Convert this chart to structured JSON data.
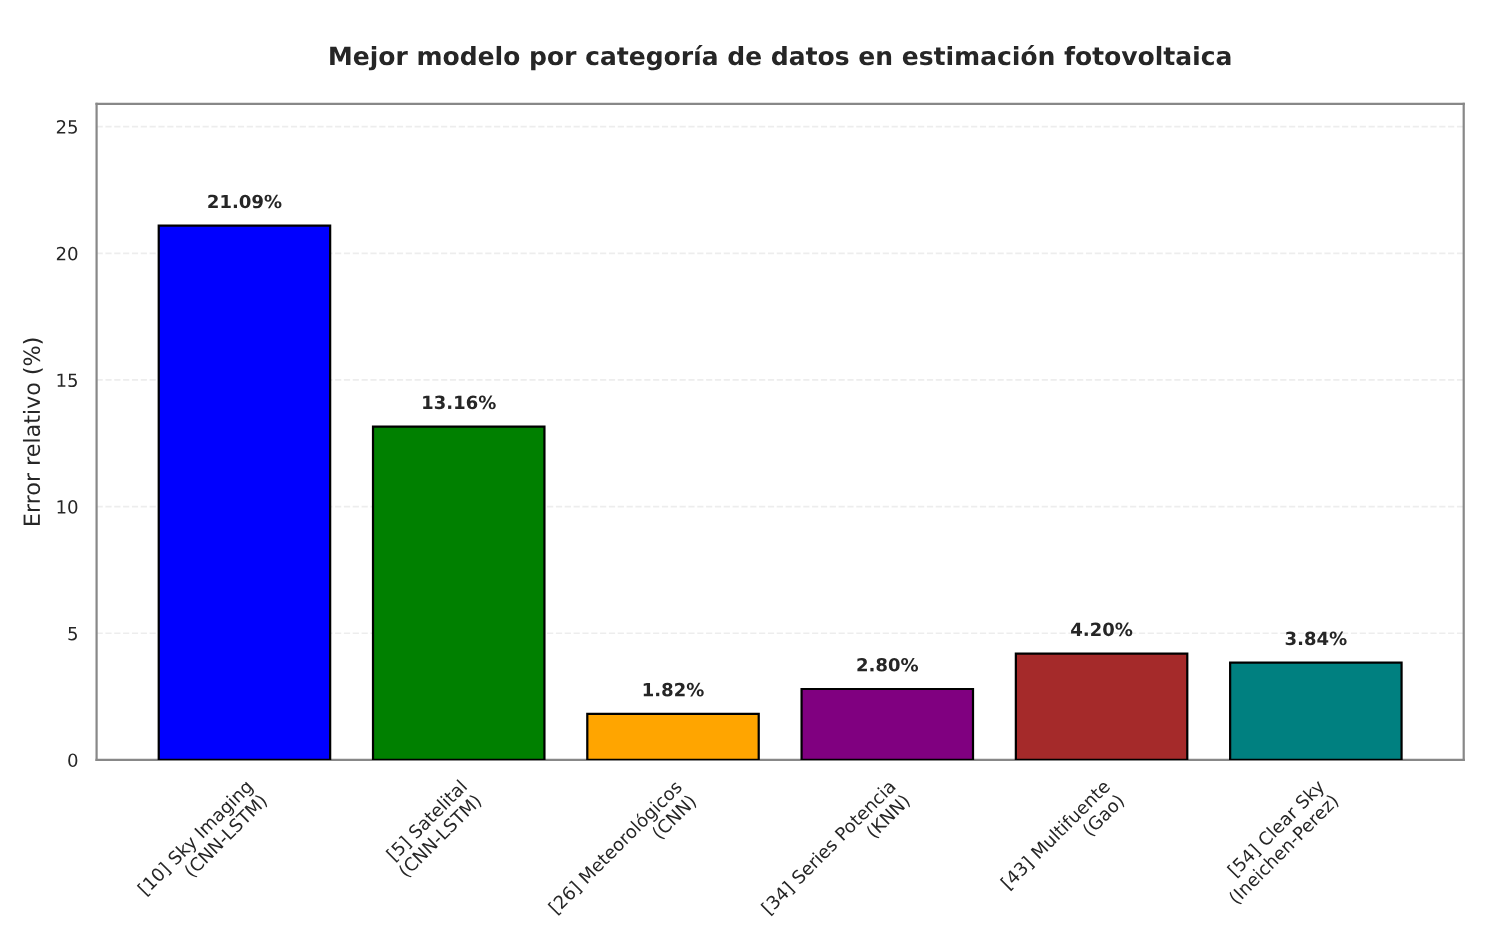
{
  "chart_data": {
    "type": "bar",
    "title": "Mejor modelo por categoría de datos en estimación fotovoltaica",
    "ylabel": "Error relativo (%)",
    "categories": [
      "[10] Sky Imaging\n(CNN-LSTM)",
      "[5] Satelital\n(CNN-LSTM)",
      "[26] Meteorológicos\n(CNN)",
      "[34] Series Potencia\n(KNN)",
      "[43] Multifuente\n(Gao)",
      "[54] Clear Sky\n(Ineichen-Perez)"
    ],
    "values": [
      21.09,
      13.16,
      1.82,
      2.8,
      4.2,
      3.84
    ],
    "colors": [
      "#0000ff",
      "#008000",
      "#ffa500",
      "#800080",
      "#a52a2a",
      "#008080"
    ],
    "value_labels": [
      "21.09%",
      "13.16%",
      "1.82%",
      "2.80%",
      "4.20%",
      "3.84%"
    ],
    "ylim": [
      0,
      25.9
    ],
    "yticks": [
      0,
      5,
      10,
      15,
      20,
      25
    ],
    "grid": "y"
  }
}
